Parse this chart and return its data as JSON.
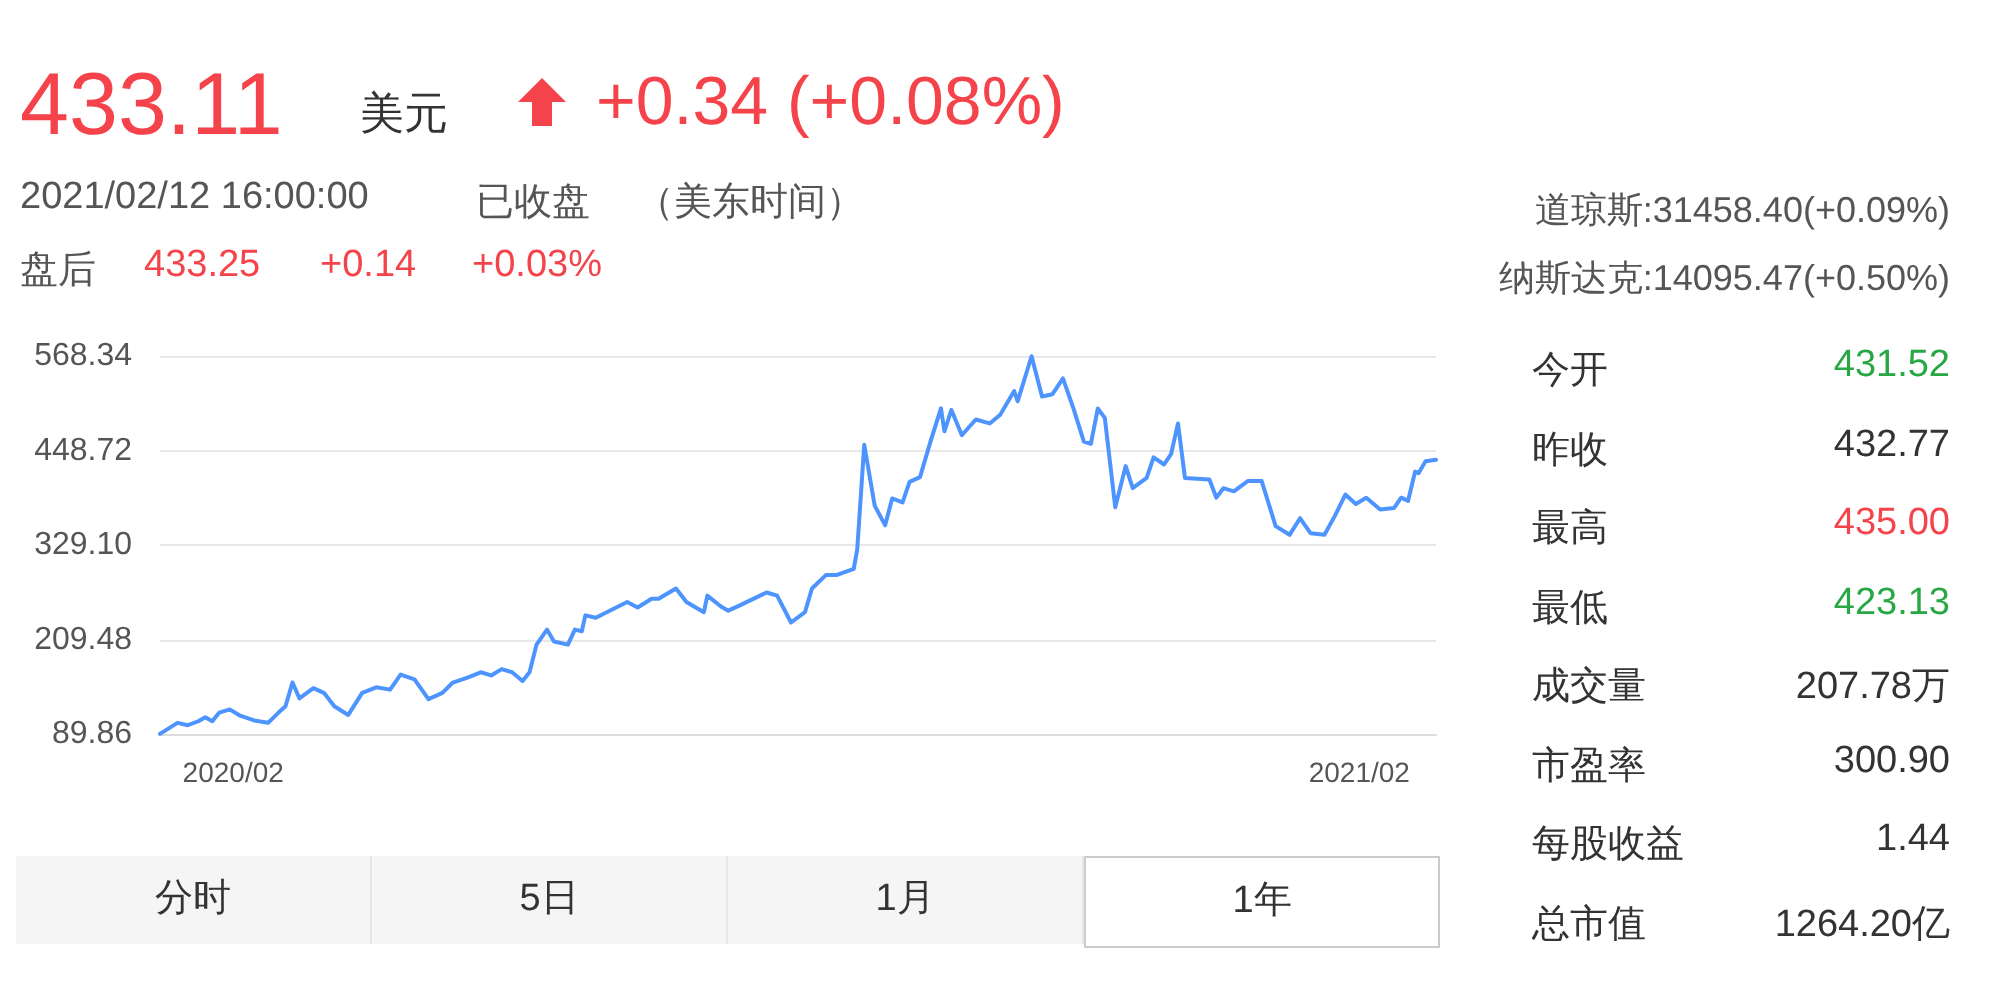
{
  "chart_data": {
    "type": "line",
    "grid": "y",
    "marker": "none",
    "annotations": [
      "433.11",
      "美元",
      "+0.34 (+0.08%)",
      "2021/02/12 16:00:00",
      "已收盘",
      "（美东时间）",
      "盘后",
      "433.25",
      "+0.14",
      "+0.03%",
      "道琼斯:31458.40(+0.09%)",
      "纳斯达克:14095.47(+0.50%)",
      "今开",
      "431.52",
      "昨收",
      "432.77",
      "最高",
      "435.00",
      "最低",
      "423.13",
      "成交量",
      "207.78万",
      "市盈率",
      "300.90",
      "每股收益",
      "1.44",
      "总市值",
      "1264.20亿",
      "分时",
      "5日",
      "1月",
      "1年"
    ],
    "xlim": [
      "2020-02-12",
      "2021-02-12"
    ],
    "xticks": [
      {
        "value": "2020-03-04",
        "label": "2020/02"
      },
      {
        "value": "2021-01-21",
        "label": "2021/02"
      }
    ],
    "ylim": [
      89.86,
      568.34
    ],
    "yticks": [
      89.86,
      209.48,
      {
        "value": 329.1,
        "label": "329.10"
      },
      448.72,
      568.34
    ],
    "x": [
      "2020-02-12",
      "2020-02-17",
      "2020-02-20",
      "2020-02-23",
      "2020-02-25",
      "2020-02-27",
      "2020-02-29",
      "2020-03-03",
      "2020-03-06",
      "2020-03-10",
      "2020-03-14",
      "2020-03-17",
      "2020-03-19",
      "2020-03-21",
      "2020-03-23",
      "2020-03-27",
      "2020-03-30",
      "2020-04-02",
      "2020-04-06",
      "2020-04-10",
      "2020-04-14",
      "2020-04-18",
      "2020-04-21",
      "2020-04-25",
      "2020-04-29",
      "2020-05-03",
      "2020-05-06",
      "2020-05-10",
      "2020-05-14",
      "2020-05-17",
      "2020-05-20",
      "2020-05-23",
      "2020-05-26",
      "2020-05-28",
      "2020-05-30",
      "2020-06-02",
      "2020-06-04",
      "2020-06-08",
      "2020-06-10",
      "2020-06-12",
      "2020-06-13",
      "2020-06-16",
      "2020-06-21",
      "2020-06-25",
      "2020-06-28",
      "2020-07-02",
      "2020-07-04",
      "2020-07-09",
      "2020-07-12",
      "2020-07-17",
      "2020-07-18",
      "2020-07-22",
      "2020-07-24",
      "2020-07-27",
      "2020-08-04",
      "2020-08-07",
      "2020-08-11",
      "2020-08-15",
      "2020-08-17",
      "2020-08-21",
      "2020-08-24",
      "2020-08-29",
      "2020-08-30",
      "2020-09-01",
      "2020-09-04",
      "2020-09-07",
      "2020-09-09",
      "2020-09-12",
      "2020-09-14",
      "2020-09-17",
      "2020-09-20",
      "2020-09-23",
      "2020-09-24",
      "2020-09-26",
      "2020-09-29",
      "2020-10-03",
      "2020-10-07",
      "2020-10-10",
      "2020-10-14",
      "2020-10-15",
      "2020-10-19",
      "2020-10-22",
      "2020-10-25",
      "2020-10-28",
      "2020-10-31",
      "2020-11-03",
      "2020-11-05",
      "2020-11-07",
      "2020-11-09",
      "2020-11-12",
      "2020-11-15",
      "2020-11-17",
      "2020-11-21",
      "2020-11-23",
      "2020-11-26",
      "2020-11-28",
      "2020-11-30",
      "2020-12-02",
      "2020-12-09",
      "2020-12-11",
      "2020-12-13",
      "2020-12-16",
      "2020-12-20",
      "2020-12-24",
      "2020-12-28",
      "2021-01-01",
      "2021-01-04",
      "2021-01-07",
      "2021-01-11",
      "2021-01-14",
      "2021-01-17",
      "2021-01-20",
      "2021-01-23",
      "2021-01-27",
      "2021-01-31",
      "2021-02-02",
      "2021-02-04",
      "2021-02-06",
      "2021-02-07",
      "2021-02-09",
      "2021-02-12"
    ],
    "series": [
      {
        "color": "#4d94ff",
        "values": [
          90,
          104,
          101,
          106,
          111,
          106,
          117,
          121,
          113,
          107,
          104,
          117,
          125,
          155,
          135,
          148,
          142,
          125,
          114,
          142,
          149,
          146,
          165,
          159,
          134,
          142,
          155,
          161,
          168,
          164,
          172,
          168,
          157,
          168,
          203,
          222,
          207,
          203,
          222,
          220,
          240,
          237,
          248,
          257,
          250,
          261,
          261,
          274,
          257,
          244,
          265,
          251,
          246,
          252,
          269,
          265,
          231,
          244,
          274,
          291,
          291,
          299,
          324,
          456,
          379,
          354,
          388,
          383,
          409,
          415,
          460,
          502,
          473,
          500,
          468,
          488,
          483,
          494,
          524,
          511,
          568,
          517,
          520,
          540,
          502,
          460,
          457,
          502,
          490,
          377,
          429,
          401,
          414,
          440,
          431,
          444,
          483,
          414,
          412,
          389,
          401,
          397,
          410,
          410,
          353,
          342,
          363,
          344,
          342,
          366,
          393,
          381,
          389,
          374,
          376,
          389,
          385,
          422,
          420,
          435,
          437
        ]
      }
    ]
  }
}
